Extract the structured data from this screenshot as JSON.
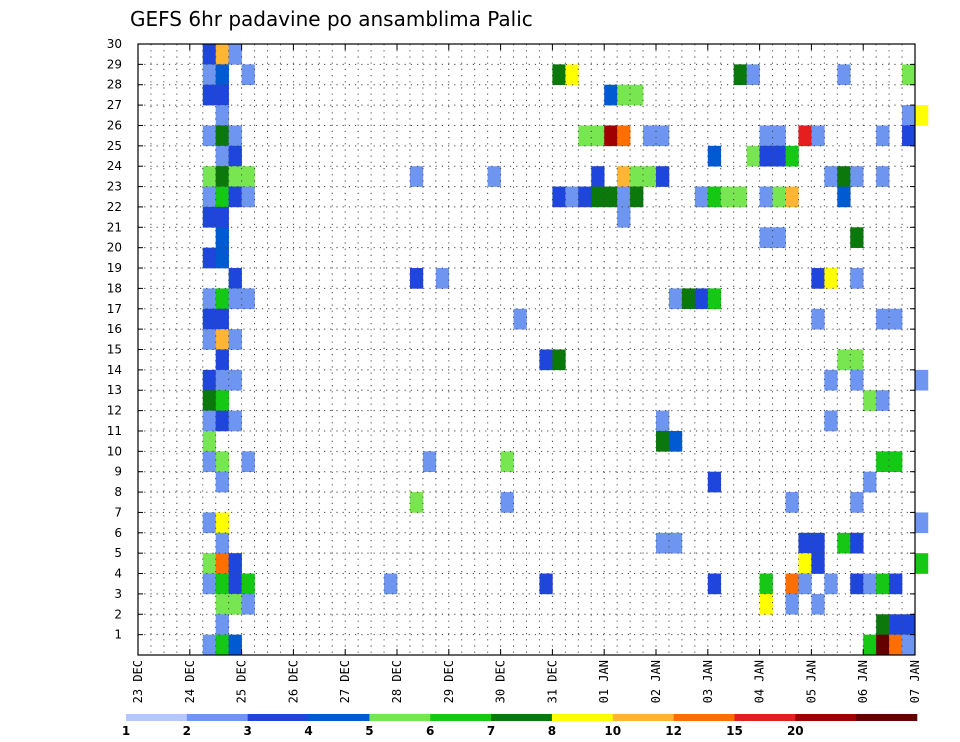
{
  "chart_data": {
    "type": "heatmap",
    "title": "GEFS 6hr padavine po ansamblima Palic",
    "y_ticks": [
      "1",
      "2",
      "3",
      "4",
      "5",
      "6",
      "7",
      "8",
      "9",
      "10",
      "11",
      "12",
      "13",
      "14",
      "15",
      "16",
      "17",
      "18",
      "19",
      "20",
      "21",
      "22",
      "23",
      "24",
      "25",
      "26",
      "27",
      "28",
      "29",
      "30"
    ],
    "x_ticks": [
      "23 DEC",
      "24 DEC",
      "25 DEC",
      "26 DEC",
      "27 DEC",
      "28 DEC",
      "29 DEC",
      "30 DEC",
      "31 DEC",
      "01 JAN",
      "02 JAN",
      "03 JAN",
      "04 JAN",
      "05 JAN",
      "06 JAN",
      "07 JAN"
    ],
    "y_range": [
      0,
      30
    ],
    "x_range_days": [
      0,
      15
    ],
    "grid": true,
    "colorbar": {
      "levels": [
        "1",
        "2",
        "3",
        "4",
        "5",
        "6",
        "7",
        "8",
        "10",
        "12",
        "15",
        "20"
      ],
      "colors": [
        "#b4c8ff",
        "#6e96f0",
        "#1e46dc",
        "#005ad2",
        "#78e650",
        "#14c814",
        "#0a780a",
        "#ffff00",
        "#ffb432",
        "#ff6e00",
        "#e61e1e",
        "#a00000",
        "#640000"
      ]
    },
    "cells": [
      [
        30,
        1.25,
        2
      ],
      [
        30,
        1.5,
        8
      ],
      [
        30,
        1.75,
        1
      ],
      [
        29,
        1.25,
        1
      ],
      [
        29,
        1.5,
        3
      ],
      [
        29,
        2.0,
        1
      ],
      [
        29,
        8.0,
        6
      ],
      [
        29,
        8.25,
        7
      ],
      [
        29,
        11.5,
        6
      ],
      [
        29,
        11.75,
        1
      ],
      [
        29,
        13.5,
        1
      ],
      [
        29,
        14.75,
        4
      ],
      [
        28,
        1.25,
        2
      ],
      [
        28,
        1.5,
        2
      ],
      [
        28,
        9.0,
        3
      ],
      [
        28,
        9.25,
        4
      ],
      [
        28,
        9.5,
        4
      ],
      [
        27,
        1.5,
        1
      ],
      [
        27,
        14.75,
        1
      ],
      [
        27,
        15.0,
        7
      ],
      [
        26,
        1.25,
        1
      ],
      [
        26,
        1.5,
        6
      ],
      [
        26,
        1.75,
        1
      ],
      [
        26,
        8.5,
        4
      ],
      [
        26,
        8.75,
        4
      ],
      [
        26,
        9.0,
        11
      ],
      [
        26,
        9.25,
        9
      ],
      [
        26,
        9.75,
        1
      ],
      [
        26,
        10.0,
        1
      ],
      [
        26,
        12.0,
        1
      ],
      [
        26,
        12.25,
        1
      ],
      [
        26,
        12.75,
        10
      ],
      [
        26,
        13.0,
        1
      ],
      [
        26,
        14.25,
        1
      ],
      [
        26,
        14.75,
        2
      ],
      [
        25,
        1.5,
        1
      ],
      [
        25,
        1.75,
        2
      ],
      [
        25,
        11.0,
        3
      ],
      [
        25,
        11.75,
        4
      ],
      [
        25,
        12.0,
        2
      ],
      [
        25,
        12.25,
        2
      ],
      [
        25,
        12.5,
        5
      ],
      [
        24,
        1.25,
        4
      ],
      [
        24,
        1.5,
        6
      ],
      [
        24,
        1.75,
        4
      ],
      [
        24,
        2.0,
        4
      ],
      [
        24,
        5.25,
        1
      ],
      [
        24,
        6.75,
        1
      ],
      [
        24,
        8.75,
        2
      ],
      [
        24,
        9.25,
        8
      ],
      [
        24,
        9.5,
        4
      ],
      [
        24,
        9.75,
        4
      ],
      [
        24,
        10.0,
        2
      ],
      [
        24,
        13.25,
        1
      ],
      [
        24,
        13.5,
        6
      ],
      [
        24,
        13.75,
        1
      ],
      [
        24,
        14.25,
        1
      ],
      [
        23,
        1.25,
        1
      ],
      [
        23,
        1.5,
        5
      ],
      [
        23,
        1.75,
        2
      ],
      [
        23,
        2.0,
        1
      ],
      [
        23,
        8.0,
        2
      ],
      [
        23,
        8.25,
        1
      ],
      [
        23,
        8.5,
        2
      ],
      [
        23,
        8.75,
        6
      ],
      [
        23,
        9.0,
        6
      ],
      [
        23,
        9.25,
        1
      ],
      [
        23,
        9.5,
        6
      ],
      [
        23,
        10.75,
        1
      ],
      [
        23,
        11.0,
        5
      ],
      [
        23,
        11.25,
        4
      ],
      [
        23,
        11.5,
        4
      ],
      [
        23,
        12.0,
        1
      ],
      [
        23,
        12.25,
        4
      ],
      [
        23,
        12.5,
        8
      ],
      [
        23,
        13.5,
        3
      ],
      [
        22,
        1.25,
        2
      ],
      [
        22,
        1.5,
        2
      ],
      [
        22,
        9.25,
        1
      ],
      [
        21,
        1.5,
        3
      ],
      [
        21,
        12.0,
        1
      ],
      [
        21,
        12.25,
        1
      ],
      [
        21,
        13.75,
        6
      ],
      [
        20,
        1.25,
        2
      ],
      [
        20,
        1.5,
        3
      ],
      [
        19,
        1.75,
        2
      ],
      [
        19,
        5.25,
        2
      ],
      [
        19,
        5.75,
        1
      ],
      [
        19,
        13.0,
        2
      ],
      [
        19,
        13.25,
        7
      ],
      [
        19,
        13.75,
        1
      ],
      [
        18,
        1.25,
        1
      ],
      [
        18,
        1.5,
        5
      ],
      [
        18,
        1.75,
        1
      ],
      [
        18,
        2.0,
        1
      ],
      [
        18,
        10.25,
        1
      ],
      [
        18,
        10.5,
        6
      ],
      [
        18,
        10.75,
        2
      ],
      [
        18,
        11.0,
        5
      ],
      [
        17,
        1.25,
        2
      ],
      [
        17,
        1.5,
        2
      ],
      [
        17,
        7.25,
        1
      ],
      [
        17,
        13.0,
        1
      ],
      [
        17,
        14.25,
        1
      ],
      [
        17,
        14.5,
        1
      ],
      [
        16,
        1.25,
        1
      ],
      [
        16,
        1.5,
        8
      ],
      [
        16,
        1.75,
        1
      ],
      [
        15,
        1.5,
        2
      ],
      [
        15,
        7.75,
        2
      ],
      [
        15,
        8.0,
        6
      ],
      [
        15,
        13.5,
        4
      ],
      [
        15,
        13.75,
        4
      ],
      [
        14,
        1.25,
        2
      ],
      [
        14,
        1.5,
        1
      ],
      [
        14,
        1.75,
        1
      ],
      [
        14,
        13.25,
        1
      ],
      [
        14,
        13.75,
        1
      ],
      [
        14,
        15.0,
        1
      ],
      [
        13,
        1.25,
        6
      ],
      [
        13,
        1.5,
        5
      ],
      [
        13,
        14.0,
        4
      ],
      [
        13,
        14.25,
        1
      ],
      [
        12,
        1.25,
        1
      ],
      [
        12,
        1.5,
        2
      ],
      [
        12,
        1.75,
        1
      ],
      [
        12,
        10.0,
        1
      ],
      [
        12,
        13.25,
        1
      ],
      [
        11,
        1.25,
        4
      ],
      [
        11,
        10.0,
        6
      ],
      [
        11,
        10.25,
        3
      ],
      [
        10,
        1.25,
        1
      ],
      [
        10,
        1.5,
        4
      ],
      [
        10,
        2.0,
        1
      ],
      [
        10,
        5.5,
        1
      ],
      [
        10,
        7.0,
        4
      ],
      [
        10,
        14.25,
        5
      ],
      [
        10,
        14.5,
        5
      ],
      [
        9,
        1.5,
        1
      ],
      [
        9,
        11.0,
        2
      ],
      [
        9,
        14.0,
        1
      ],
      [
        8,
        5.25,
        4
      ],
      [
        8,
        7.0,
        1
      ],
      [
        8,
        12.5,
        1
      ],
      [
        8,
        13.75,
        1
      ],
      [
        7,
        1.25,
        1
      ],
      [
        7,
        1.5,
        7
      ],
      [
        7,
        15.0,
        1
      ],
      [
        6,
        1.5,
        1
      ],
      [
        6,
        10.0,
        1
      ],
      [
        6,
        10.25,
        1
      ],
      [
        6,
        12.75,
        2
      ],
      [
        6,
        13.0,
        2
      ],
      [
        6,
        13.5,
        5
      ],
      [
        6,
        13.75,
        2
      ],
      [
        5,
        1.25,
        4
      ],
      [
        5,
        1.5,
        9
      ],
      [
        5,
        1.75,
        2
      ],
      [
        5,
        12.75,
        7
      ],
      [
        5,
        13.0,
        2
      ],
      [
        5,
        15.0,
        5
      ],
      [
        4,
        1.25,
        1
      ],
      [
        4,
        1.5,
        5
      ],
      [
        4,
        1.75,
        2
      ],
      [
        4,
        2.0,
        5
      ],
      [
        4,
        4.75,
        1
      ],
      [
        4,
        7.75,
        2
      ],
      [
        4,
        11.0,
        2
      ],
      [
        4,
        12.0,
        5
      ],
      [
        4,
        12.5,
        9
      ],
      [
        4,
        12.75,
        1
      ],
      [
        4,
        13.25,
        1
      ],
      [
        4,
        13.75,
        2
      ],
      [
        4,
        14.0,
        1
      ],
      [
        4,
        14.25,
        5
      ],
      [
        4,
        14.5,
        2
      ],
      [
        3,
        1.5,
        4
      ],
      [
        3,
        1.75,
        4
      ],
      [
        3,
        2.0,
        1
      ],
      [
        3,
        12.0,
        7
      ],
      [
        3,
        12.5,
        1
      ],
      [
        3,
        13.0,
        1
      ],
      [
        2,
        1.5,
        1
      ],
      [
        2,
        14.25,
        6
      ],
      [
        2,
        14.5,
        2
      ],
      [
        2,
        14.75,
        2
      ],
      [
        1,
        1.25,
        1
      ],
      [
        1,
        1.5,
        5
      ],
      [
        1,
        1.75,
        3
      ],
      [
        1,
        14.0,
        5
      ],
      [
        1,
        14.25,
        12
      ],
      [
        1,
        14.5,
        9
      ],
      [
        1,
        14.75,
        1
      ]
    ]
  }
}
